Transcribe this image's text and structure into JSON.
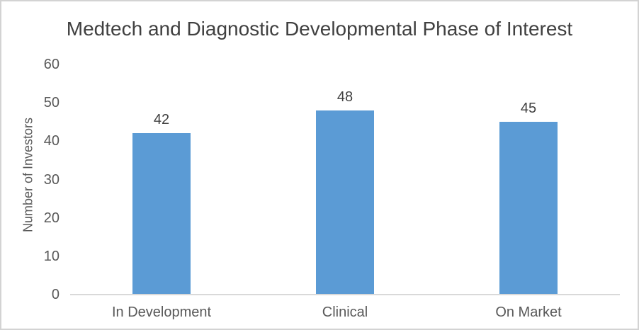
{
  "window": {
    "background_color": "#FFFFFF",
    "border_color": "#D3D3D3"
  },
  "chart_data": {
    "type": "bar",
    "title": "Medtech and Diagnostic Developmental Phase of Interest",
    "categories": [
      "In Development",
      "Clinical",
      "On Market"
    ],
    "values": [
      42,
      48,
      45
    ],
    "data_labels": [
      "42",
      "48",
      "45"
    ],
    "xlabel": "",
    "ylabel": "Number of Investors",
    "ylim": [
      0,
      60
    ],
    "yticks": [
      0,
      10,
      20,
      30,
      40,
      50,
      60
    ],
    "grid": "off",
    "legend": "none",
    "bar_color": "#5B9BD5",
    "axis_line_color": "#D9D9D9",
    "title_color": "#404040",
    "axis_title_color": "#595959",
    "tick_label_color": "#595959",
    "category_label_color": "#595959",
    "data_label_color": "#404040"
  }
}
